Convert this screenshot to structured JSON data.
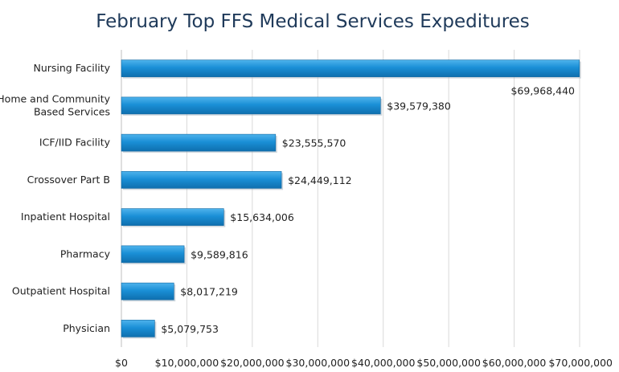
{
  "chart_data": {
    "type": "bar",
    "orientation": "horizontal",
    "title": "February Top FFS Medical Services Expeditures",
    "categories": [
      "Nursing Facility",
      "Home and Community Based Services",
      "ICF/IID Facility",
      "Crossover Part B",
      "Inpatient Hospital",
      "Pharmacy",
      "Outpatient Hospital",
      "Physician"
    ],
    "category_lines": [
      [
        "Nursing Facility"
      ],
      [
        "Home and Community",
        "Based Services"
      ],
      [
        "ICF/IID Facility"
      ],
      [
        "Crossover Part B"
      ],
      [
        "Inpatient Hospital"
      ],
      [
        "Pharmacy"
      ],
      [
        "Outpatient Hospital"
      ],
      [
        "Physician"
      ]
    ],
    "values": [
      69968440,
      39579380,
      23555570,
      24449112,
      15634006,
      9589816,
      8017219,
      5079753
    ],
    "data_labels": [
      "$69,968,440",
      "$39,579,380",
      "$23,555,570",
      "$24,449,112",
      "$15,634,006",
      "$9,589,816",
      "$8,017,219",
      "$5,079,753"
    ],
    "xlim": [
      0,
      70000000
    ],
    "xticks": [
      0,
      10000000,
      20000000,
      30000000,
      40000000,
      50000000,
      60000000,
      70000000
    ],
    "xtick_labels": [
      "$0",
      "$10,000,000",
      "$20,000,000",
      "$30,000,000",
      "$40,000,000",
      "$50,000,000",
      "$60,000,000",
      "$70,000,000"
    ],
    "grid": true,
    "legend": "none",
    "bar_color": "#1a8fd6",
    "title_color": "#1f3a5a"
  }
}
